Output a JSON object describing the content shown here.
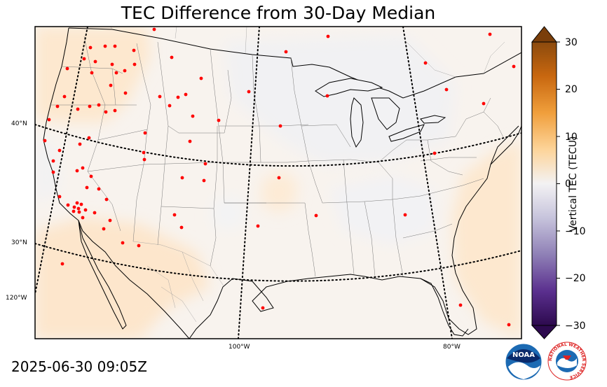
{
  "title": "TEC Difference from 30-Day Median",
  "timestamp": "2025-06-30 09:05Z",
  "colorbar": {
    "label": "Vertical TEC (TECU)",
    "ticks": [
      "30",
      "20",
      "10",
      "0",
      "−10",
      "−20",
      "−30"
    ],
    "tick_values": [
      30,
      20,
      10,
      0,
      -10,
      -20,
      -30
    ],
    "range": [
      -30,
      30
    ],
    "positive_color": "#8b4a0e",
    "neutral_color": "#f2f2f2",
    "negative_color": "#2d0a4e"
  },
  "graticule": {
    "lat_labels": [
      "40°N",
      "30°N"
    ],
    "lon_labels": [
      "120°W",
      "100°W",
      "80°W"
    ]
  },
  "map": {
    "region": "Contiguous United States",
    "background_color": "#f8f3ee",
    "field_values": {
      "pacific_northwest": 3,
      "southwest_mexico": 3,
      "atlantic_east": 3,
      "northeast_lakes": -1
    },
    "station_color": "#ff0000",
    "station_count": 90
  },
  "logos": {
    "noaa_text": "NOAA",
    "nws_text": "NATIONAL WEATHER SERVICE"
  }
}
